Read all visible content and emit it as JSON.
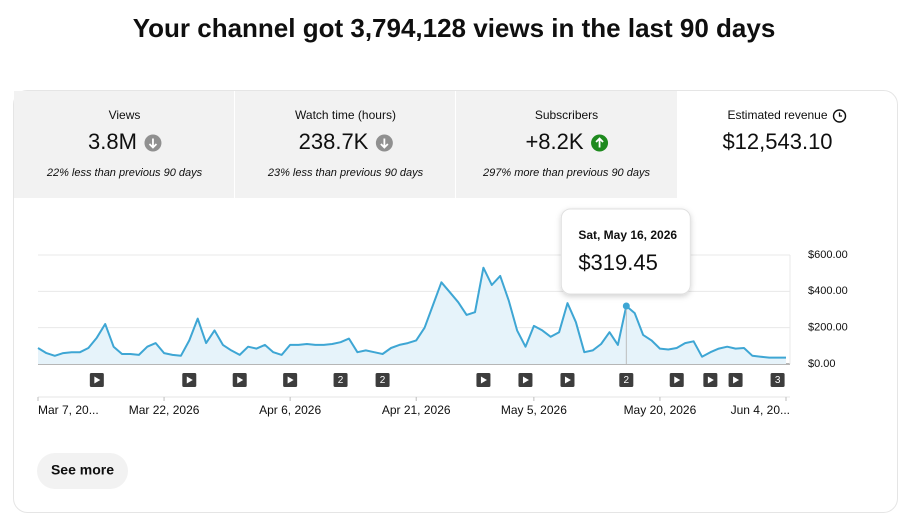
{
  "header": {
    "title": "Your channel got 3,794,128 views in the last 90 days"
  },
  "metrics": [
    {
      "label": "Views",
      "value": "3.8M",
      "trend": "down",
      "note": "22% less than previous 90 days"
    },
    {
      "label": "Watch time (hours)",
      "value": "238.7K",
      "trend": "down",
      "note": "23% less than previous 90 days"
    },
    {
      "label": "Subscribers",
      "value": "+8.2K",
      "trend": "up",
      "note": "297% more than previous 90 days"
    },
    {
      "label": "Estimated revenue",
      "value": "$12,543.10",
      "trend": "clock"
    }
  ],
  "chart_data": {
    "type": "area",
    "color": "#3ea6d4",
    "fill": "#e6f3fa",
    "values": [
      88,
      60,
      45,
      60,
      65,
      65,
      88,
      145,
      220,
      95,
      55,
      55,
      50,
      95,
      115,
      60,
      50,
      45,
      130,
      250,
      115,
      185,
      105,
      75,
      50,
      95,
      85,
      105,
      65,
      50,
      105,
      105,
      110,
      105,
      105,
      110,
      120,
      140,
      65,
      75,
      65,
      55,
      88,
      105,
      115,
      130,
      200,
      325,
      450,
      395,
      340,
      270,
      285,
      530,
      435,
      485,
      350,
      185,
      95,
      210,
      185,
      150,
      175,
      335,
      230,
      65,
      75,
      110,
      175,
      105,
      319.45,
      280,
      160,
      130,
      85,
      80,
      88,
      115,
      125,
      40,
      65,
      85,
      95,
      85,
      88,
      45,
      40,
      35,
      35,
      35
    ],
    "ylim": [
      0,
      600
    ],
    "yticks": [
      {
        "value": 0,
        "label": "$0.00"
      },
      {
        "value": 200,
        "label": "$200.00"
      },
      {
        "value": 400,
        "label": "$400.00"
      },
      {
        "value": 600,
        "label": "$600.00"
      }
    ],
    "xlim": [
      0,
      89
    ],
    "xticks": [
      {
        "value": 0,
        "label": "Mar 7, 20..."
      },
      {
        "value": 15,
        "label": "Mar 22, 2026"
      },
      {
        "value": 30,
        "label": "Apr 6, 2026"
      },
      {
        "value": 45,
        "label": "Apr 21, 2026"
      },
      {
        "value": 59,
        "label": "May 5, 2026"
      },
      {
        "value": 74,
        "label": "May 20, 2026"
      },
      {
        "value": 89,
        "label": "Jun 4, 20..."
      }
    ],
    "grid": true,
    "highlight": 70,
    "tooltip": {
      "date": "Sat, May 16, 2026",
      "value": "$319.45"
    },
    "markers": [
      {
        "at": 7
      },
      {
        "at": 18
      },
      {
        "at": 24
      },
      {
        "at": 30
      },
      {
        "at": 36,
        "count": 2
      },
      {
        "at": 41,
        "count": 2
      },
      {
        "at": 53
      },
      {
        "at": 58
      },
      {
        "at": 63
      },
      {
        "at": 70,
        "count": 2
      },
      {
        "at": 76
      },
      {
        "at": 80
      },
      {
        "at": 83
      },
      {
        "at": 88,
        "count": 3
      }
    ]
  },
  "button": {
    "label": "See more"
  }
}
